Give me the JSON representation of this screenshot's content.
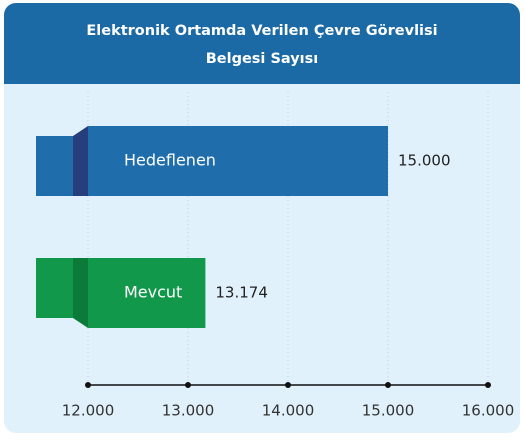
{
  "chart_data": {
    "type": "bar",
    "orientation": "horizontal",
    "title": [
      "Elektronik Ortamda Verilen Çevre Görevlisi",
      "Belgesi Sayısı"
    ],
    "categories": [
      "Hedeflenen",
      "Mevcut"
    ],
    "values": [
      15000,
      13174
    ],
    "value_labels": [
      "15.000",
      "13.174"
    ],
    "colors": [
      "#1f6dab",
      "#12984a"
    ],
    "fold_colors": [
      "#263f7c",
      "#0c7a3a"
    ],
    "xlim": [
      12000,
      16000
    ],
    "xticks": [
      {
        "value": 12000,
        "label": "12.000"
      },
      {
        "value": 13000,
        "label": "13.000"
      },
      {
        "value": 14000,
        "label": "14.000"
      },
      {
        "value": 15000,
        "label": "15.000"
      },
      {
        "value": 16000,
        "label": "16.000"
      }
    ],
    "grid": true
  }
}
